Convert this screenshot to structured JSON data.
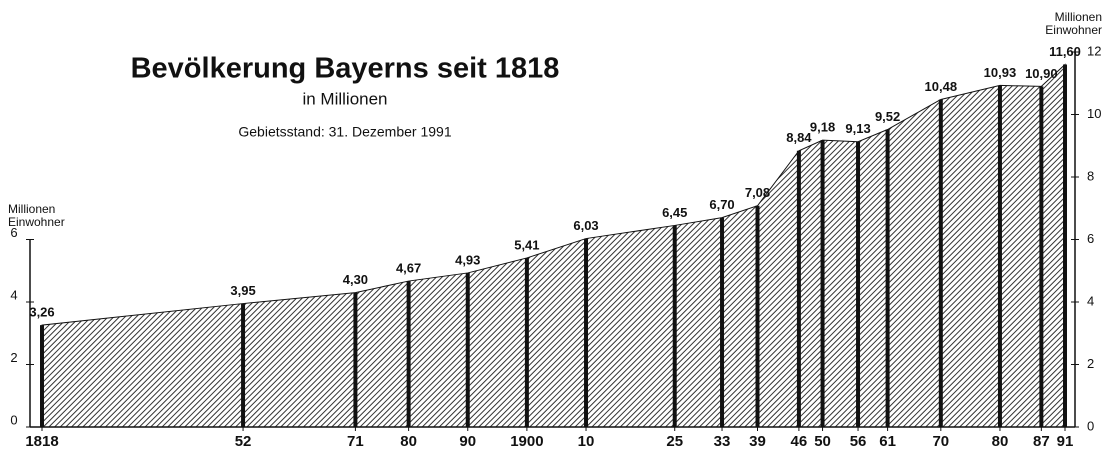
{
  "chart_data": {
    "type": "area",
    "title": "Bevölkerung Bayerns seit 1818",
    "subtitle": "in Millionen",
    "note": "Gebietsstand: 31. Dezember 1991",
    "ylabel": [
      "Millionen",
      "Einwohner"
    ],
    "y2label": [
      "Millionen",
      "Einwohner"
    ],
    "x": [
      1818,
      1852,
      1871,
      1880,
      1890,
      1900,
      1910,
      1925,
      1933,
      1939,
      1946,
      1950,
      1956,
      1961,
      1970,
      1980,
      1987,
      1991
    ],
    "series": [
      {
        "name": "Bevölkerung",
        "color": "#111111",
        "values": [
          3.26,
          3.95,
          4.3,
          4.67,
          4.93,
          5.41,
          6.03,
          6.45,
          6.7,
          7.08,
          8.84,
          9.18,
          9.13,
          9.52,
          10.48,
          10.93,
          10.9,
          11.6
        ],
        "value_labels": [
          "3,26",
          "3,95",
          "4,30",
          "4,67",
          "4,93",
          "5,41",
          "6,03",
          "6,45",
          "6,70",
          "7,08",
          "8,84",
          "9,18",
          "9,13",
          "9,52",
          "10,48",
          "10,93",
          "10,90",
          "11,60"
        ]
      }
    ],
    "xlim": [
      1818,
      1991
    ],
    "xticks": [
      {
        "value": 1818,
        "label": "1818"
      },
      {
        "value": 1852,
        "label": "52"
      },
      {
        "value": 1871,
        "label": "71"
      },
      {
        "value": 1880,
        "label": "80"
      },
      {
        "value": 1890,
        "label": "90"
      },
      {
        "value": 1900,
        "label": "1900"
      },
      {
        "value": 1910,
        "label": "10"
      },
      {
        "value": 1925,
        "label": "25"
      },
      {
        "value": 1933,
        "label": "33"
      },
      {
        "value": 1939,
        "label": "39"
      },
      {
        "value": 1946,
        "label": "46"
      },
      {
        "value": 1950,
        "label": "50"
      },
      {
        "value": 1956,
        "label": "56"
      },
      {
        "value": 1961,
        "label": "61"
      },
      {
        "value": 1970,
        "label": "70"
      },
      {
        "value": 1980,
        "label": "80"
      },
      {
        "value": 1987,
        "label": "87"
      },
      {
        "value": 1991,
        "label": "91"
      }
    ],
    "ylim": [
      0,
      12
    ],
    "yticks": [
      0,
      2,
      4,
      6
    ],
    "y2lim": [
      0,
      12
    ],
    "y2ticks": [
      0,
      2,
      4,
      6,
      8,
      10,
      12
    ]
  }
}
